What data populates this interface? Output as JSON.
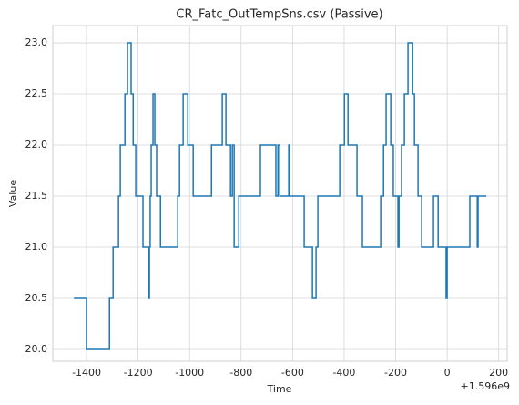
{
  "chart_data": {
    "type": "step",
    "title": "CR_Fatc_OutTempSns.csv (Passive)",
    "x_label": "Time",
    "y_label": "Value",
    "x_offset_label": "+1.596e9",
    "xlim": [
      -1531,
      233
    ],
    "ylim": [
      19.884,
      23.17
    ],
    "xticks": [
      -1400,
      -1200,
      -1000,
      -800,
      -600,
      -400,
      -200,
      0,
      200
    ],
    "yticks": [
      {
        "value": 20,
        "label": "20.0"
      },
      20.5,
      {
        "value": 21,
        "label": "21.0"
      },
      21.5,
      {
        "value": 22,
        "label": "22.0"
      },
      22.5,
      {
        "value": 23,
        "label": "23.0"
      }
    ],
    "grid": true,
    "series": [
      {
        "color": "#1f77b4",
        "x": [
          -1449,
          -1400,
          -1311,
          -1297,
          -1276,
          -1269,
          -1251,
          -1241,
          -1227,
          -1219,
          -1209,
          -1181,
          -1159,
          -1156,
          -1153,
          -1149,
          -1142,
          -1135,
          -1128,
          -1113,
          -1046,
          -1039,
          -1025,
          -1007,
          -986,
          -915,
          -873,
          -859,
          -841,
          -834,
          -827,
          -809,
          -760,
          -725,
          -665,
          -657,
          -650,
          -615,
          -612,
          -555,
          -523,
          -509,
          -502,
          -445,
          -417,
          -399,
          -385,
          -350,
          -329,
          -258,
          -247,
          -237,
          -219,
          -209,
          -191,
          -187,
          -180,
          -177,
          -166,
          -152,
          -134,
          -127,
          -113,
          -99,
          -53,
          -35,
          -4,
          0,
          88,
          117,
          120,
          152
        ],
        "values": [
          20.5,
          20.0,
          20.5,
          21.0,
          21.5,
          22.0,
          22.5,
          23.0,
          22.5,
          22.0,
          21.5,
          21.0,
          20.5,
          21.0,
          21.5,
          22.0,
          22.5,
          22.0,
          21.5,
          21.0,
          21.5,
          22.0,
          22.5,
          22.0,
          21.5,
          22.0,
          22.5,
          22.0,
          21.5,
          22.0,
          21.0,
          21.5,
          21.5,
          22.0,
          21.5,
          22.0,
          21.5,
          22.0,
          21.5,
          21.0,
          20.5,
          21.0,
          21.5,
          21.5,
          22.0,
          22.5,
          22.0,
          21.5,
          21.0,
          21.5,
          22.0,
          22.5,
          22.0,
          21.5,
          21.0,
          21.5,
          21.5,
          22.0,
          22.5,
          23.0,
          22.5,
          22.0,
          21.5,
          21.0,
          21.5,
          21.0,
          20.5,
          21.0,
          21.5,
          21.0,
          21.5,
          21.5
        ]
      }
    ]
  }
}
